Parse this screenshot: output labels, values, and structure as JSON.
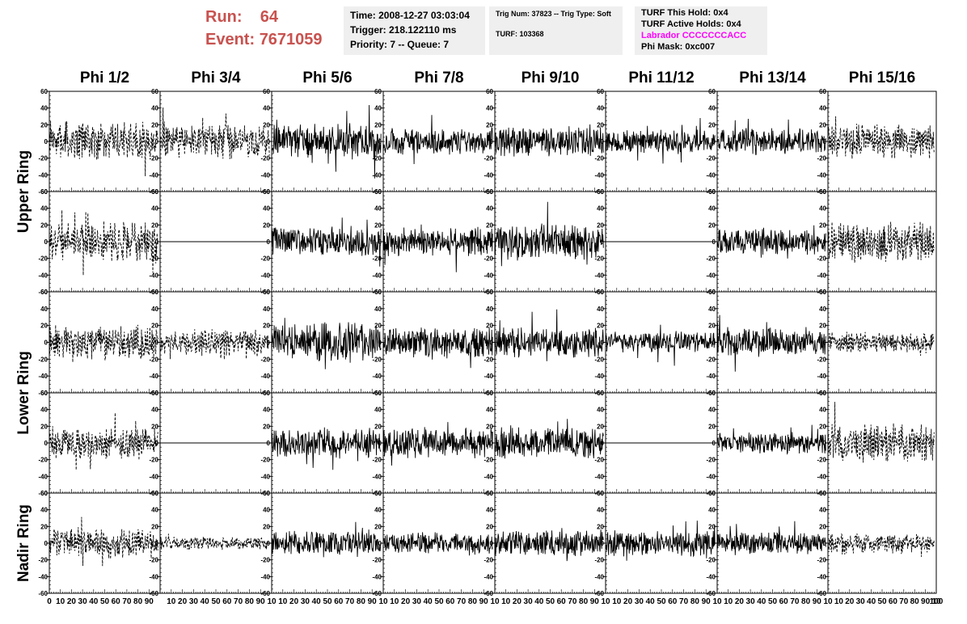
{
  "header": {
    "run_label": "Run:",
    "run_value": "64",
    "event_label": "Event:",
    "event_value": "7671059"
  },
  "info_panels": {
    "time": "Time: 2008-12-27 03:03:04",
    "trigger": "Trigger: 218.122110 ms",
    "priority": "Priority: 7 -- Queue: 7",
    "trig_num": "Trig Num: 37823 -- Trig Type: Soft",
    "turf": "TURF: 103368",
    "turf_this_hold": "TURF This Hold: 0x4",
    "turf_active_holds": "TURF Active Holds: 0x4",
    "labrador": "Labrador CCCCCCCACC",
    "phi_mask": "Phi Mask: 0xc007",
    "labrador_color": "#ff00ff"
  },
  "chart_data": {
    "type": "line",
    "columns": [
      "Phi 1/2",
      "Phi 3/4",
      "Phi 5/6",
      "Phi 7/8",
      "Phi 9/10",
      "Phi 11/12",
      "Phi 13/14",
      "Phi 15/16"
    ],
    "ring_labels": [
      "Upper Ring",
      "Lower Ring",
      "Nadir Ring"
    ],
    "rows": 5,
    "ylim": [
      -60,
      60
    ],
    "xlim": [
      0,
      100
    ],
    "y_ticks": [
      -60,
      -40,
      -20,
      0,
      20,
      40,
      60
    ],
    "x_ticks": [
      0,
      10,
      20,
      30,
      40,
      50,
      60,
      70,
      80,
      90,
      100
    ],
    "x_tick_labels": [
      "0",
      "10",
      "20",
      "30",
      "40",
      "50",
      "60",
      "70",
      "80",
      "90",
      "100"
    ],
    "x_tick_labels_short": [
      "10",
      "20",
      "30",
      "40",
      "50",
      "60",
      "70",
      "80",
      "90",
      "10"
    ],
    "line_color": "#000000",
    "series_style": [
      [
        "dashed",
        "dashed",
        "solid",
        "solid",
        "solid",
        "solid",
        "solid",
        "dashed"
      ],
      [
        "dashed",
        "flat",
        "solid",
        "solid",
        "solid",
        "flat",
        "solid",
        "dashed"
      ],
      [
        "dashed",
        "dashed",
        "solid",
        "solid",
        "solid",
        "solid",
        "solid",
        "dashed"
      ],
      [
        "dashed",
        "flat",
        "solid",
        "solid",
        "solid",
        "flat",
        "solid",
        "dashed"
      ],
      [
        "dashed",
        "dashed",
        "solid",
        "solid",
        "solid",
        "solid",
        "solid",
        "dashed"
      ]
    ],
    "amplitude": [
      [
        18,
        16,
        16,
        12,
        14,
        11,
        12,
        16
      ],
      [
        18,
        0,
        14,
        13,
        17,
        0,
        12,
        20
      ],
      [
        16,
        12,
        18,
        14,
        14,
        10,
        13,
        10
      ],
      [
        15,
        0,
        14,
        14,
        14,
        0,
        10,
        18
      ],
      [
        14,
        6,
        12,
        10,
        12,
        12,
        11,
        9
      ]
    ]
  }
}
